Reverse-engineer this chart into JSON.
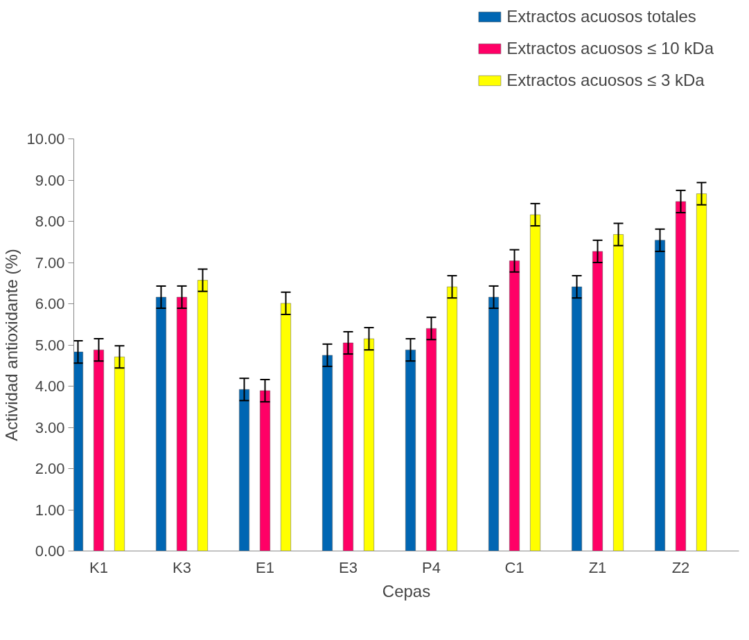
{
  "chart_data": {
    "type": "bar",
    "xlabel": "Cepas",
    "ylabel": "Actividad antioxidante (%)",
    "categories": [
      "K1",
      "K3",
      "E1",
      "E3",
      "P4",
      "C1",
      "Z1",
      "Z2"
    ],
    "series": [
      {
        "name": "Extractos acuosos totales",
        "color": "#0066b3",
        "values": [
          4.83,
          6.16,
          3.92,
          4.75,
          4.88,
          6.16,
          6.41,
          7.54
        ],
        "errors": [
          0.27,
          0.27,
          0.27,
          0.27,
          0.27,
          0.27,
          0.27,
          0.27
        ]
      },
      {
        "name": "Extractos acuosos ≤ 10 kDa",
        "color": "#ff0066",
        "values": [
          4.88,
          6.16,
          3.89,
          5.05,
          5.4,
          7.04,
          7.27,
          8.48
        ],
        "errors": [
          0.27,
          0.27,
          0.27,
          0.27,
          0.27,
          0.27,
          0.27,
          0.27
        ]
      },
      {
        "name": "Extractos acuosos ≤ 3 kDa",
        "color": "#ffff00",
        "values": [
          4.71,
          6.57,
          6.01,
          5.15,
          6.41,
          8.16,
          7.68,
          8.67
        ],
        "errors": [
          0.27,
          0.27,
          0.27,
          0.27,
          0.27,
          0.27,
          0.27,
          0.27
        ]
      }
    ],
    "ylim": [
      0,
      10
    ],
    "yticks": [
      {
        "value": 0,
        "label": "0.00"
      },
      {
        "value": 1,
        "label": "1.00"
      },
      {
        "value": 2,
        "label": "2.00"
      },
      {
        "value": 3,
        "label": "3.00"
      },
      {
        "value": 4,
        "label": "4.00"
      },
      {
        "value": 5,
        "label": "5.00"
      },
      {
        "value": 6,
        "label": "6.00"
      },
      {
        "value": 7,
        "label": "7.00"
      },
      {
        "value": 8,
        "label": "8.00"
      },
      {
        "value": 9,
        "label": "9.00"
      },
      {
        "value": 10,
        "label": "10.00"
      }
    ],
    "grid": false,
    "legend": "top right"
  }
}
